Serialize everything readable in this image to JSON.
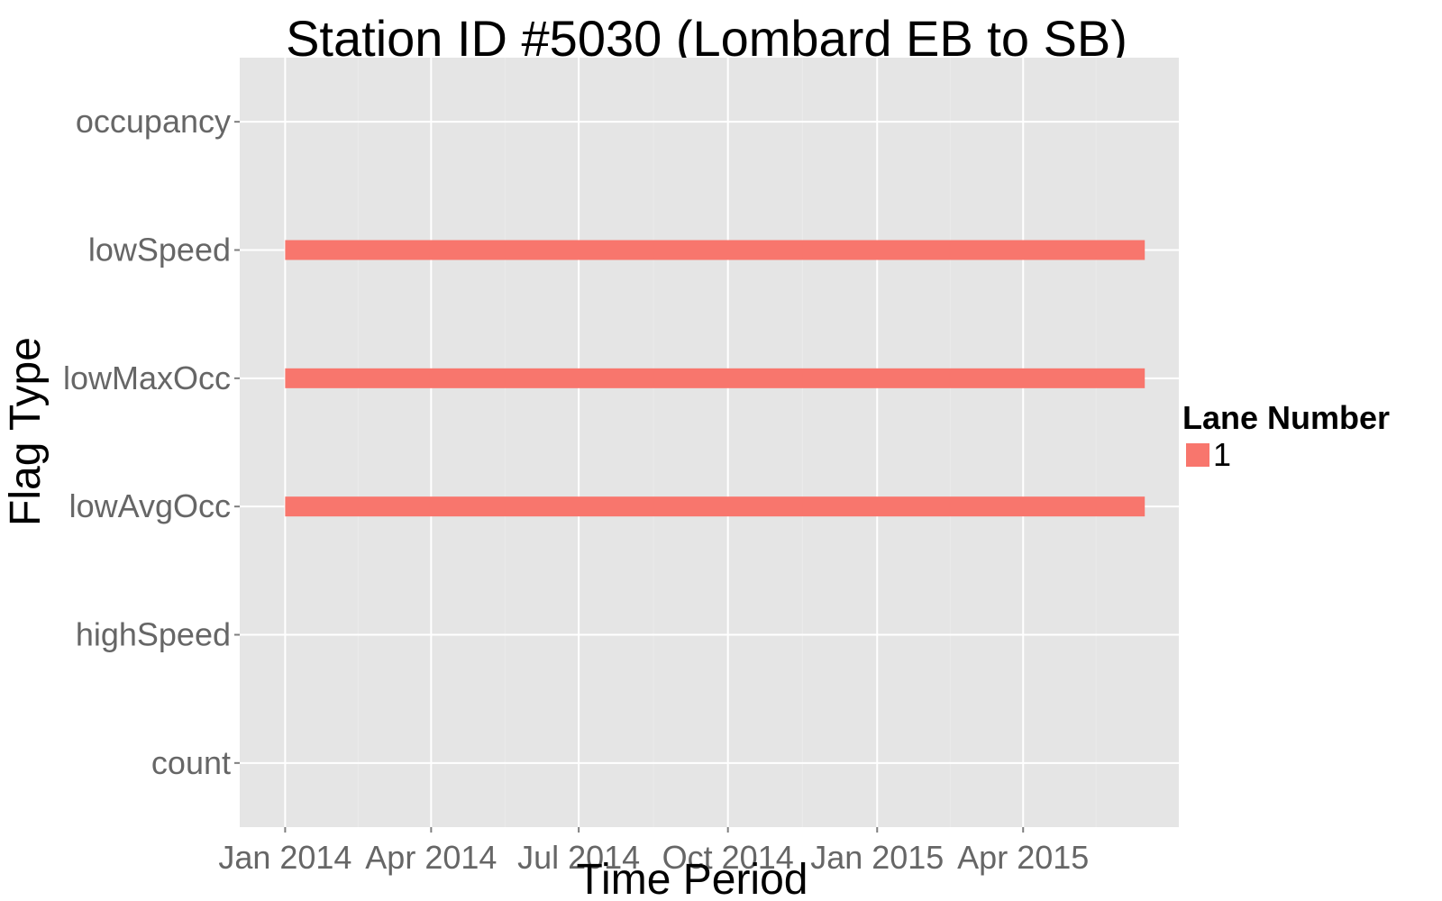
{
  "chart_data": {
    "type": "bar",
    "title": "Station ID #5030 (Lombard EB to SB)",
    "xlabel": "Time Period",
    "ylabel": "Flag Type",
    "categories": [
      "count",
      "highSpeed",
      "lowAvgOcc",
      "lowMaxOcc",
      "lowSpeed",
      "occupancy"
    ],
    "x_ticks": [
      "2014-01-01",
      "2014-04-01",
      "2014-07-01",
      "2014-10-01",
      "2015-01-01",
      "2015-04-01"
    ],
    "x_tick_labels": [
      "Jan 2014",
      "Apr 2014",
      "Jul 2014",
      "Oct 2014",
      "Jan 2015",
      "Apr 2015"
    ],
    "xlim": [
      "2013-12-04",
      "2015-07-06"
    ],
    "grid": true,
    "legend": {
      "title": "Lane Number",
      "placement": "right",
      "entries": [
        {
          "label": "1",
          "color": "#F8766D"
        }
      ]
    },
    "series": [
      {
        "name": "1",
        "color": "#F8766D",
        "segments": [
          {
            "flag": "lowSpeed",
            "start": "2014-01-01",
            "end": "2015-06-15"
          },
          {
            "flag": "lowMaxOcc",
            "start": "2014-01-01",
            "end": "2015-06-15"
          },
          {
            "flag": "lowAvgOcc",
            "start": "2014-01-01",
            "end": "2015-06-15"
          }
        ]
      }
    ],
    "colors": {
      "panel": "#E5E5E5",
      "grid_major": "#FFFFFF",
      "grid_minor": "#EBEBEB",
      "tick_text": "#666666"
    }
  }
}
